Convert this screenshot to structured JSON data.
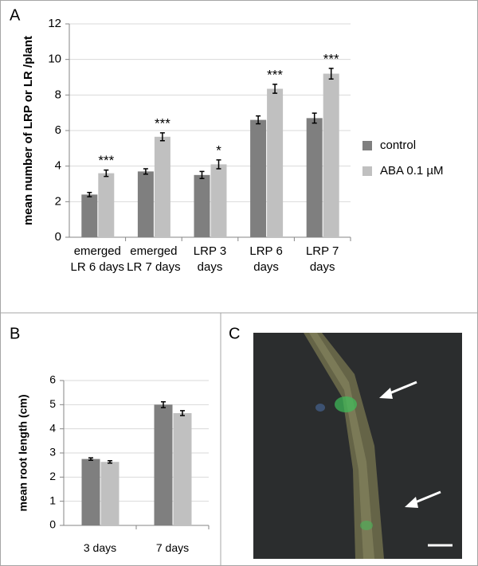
{
  "panels": [
    "A",
    "B",
    "C"
  ],
  "chart_data": [
    {
      "type": "bar",
      "ylabel": "mean number of LRP or LR /plant",
      "categories": [
        "emerged LR 6 days",
        "emerged LR 7 days",
        "LRP 3 days",
        "LRP 6 days",
        "LRP 7 days"
      ],
      "series": [
        {
          "name": "control",
          "color": "#7f7f7f",
          "values": [
            2.4,
            3.7,
            3.5,
            6.6,
            6.7
          ],
          "errors": [
            0.12,
            0.15,
            0.2,
            0.22,
            0.28
          ]
        },
        {
          "name": "ABA 0.1 µM",
          "color": "#c0c0c0",
          "values": [
            3.6,
            5.65,
            4.1,
            8.35,
            9.2
          ],
          "errors": [
            0.18,
            0.22,
            0.25,
            0.25,
            0.3
          ]
        }
      ],
      "annotations": [
        "***",
        "***",
        "*",
        "***",
        "***"
      ],
      "ylim": [
        0,
        12
      ],
      "yticks": [
        0,
        2,
        4,
        6,
        8,
        10,
        12
      ],
      "grid": true,
      "legend": "right"
    },
    {
      "type": "bar",
      "ylabel": "mean root length (cm)",
      "categories": [
        "3 days",
        "7 days"
      ],
      "series": [
        {
          "color": "#7f7f7f",
          "values": [
            2.75,
            5.0
          ],
          "errors": [
            0.05,
            0.12
          ]
        },
        {
          "color": "#c0c0c0",
          "values": [
            2.63,
            4.65
          ],
          "errors": [
            0.05,
            0.1
          ]
        }
      ],
      "ylim": [
        0,
        6
      ],
      "yticks": [
        0,
        1,
        2,
        3,
        4,
        5,
        6
      ],
      "grid": true
    }
  ]
}
